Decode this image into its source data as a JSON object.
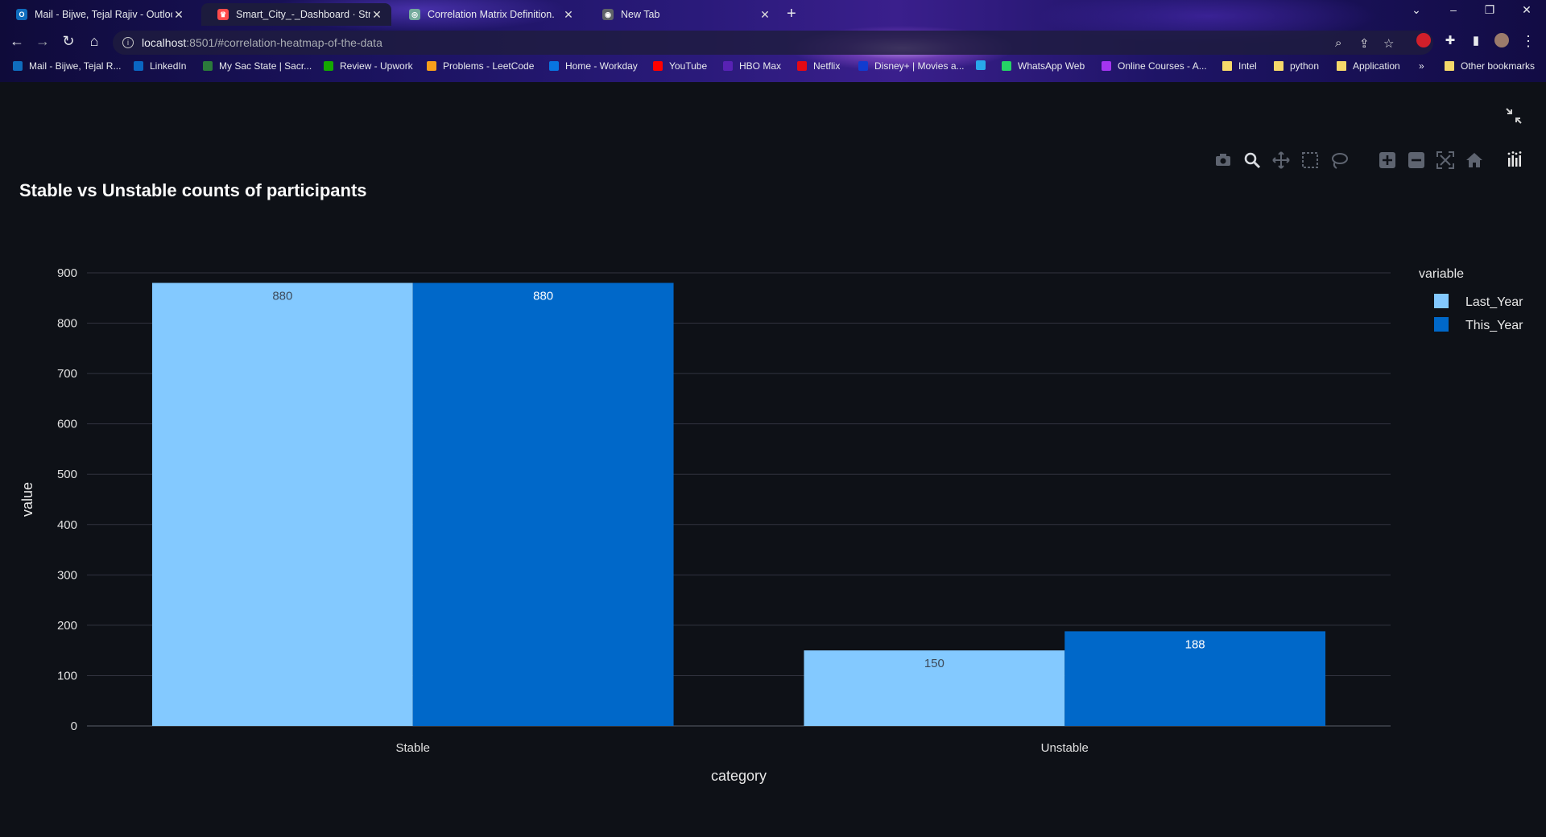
{
  "browser": {
    "tabs": [
      {
        "label": "Mail - Bijwe, Tejal Rajiv - Outlook",
        "icon": "outlook-icon",
        "color": "#0f6cbd",
        "glyph": "O",
        "active": false
      },
      {
        "label": "Smart_City_-_Dashboard · Stream",
        "icon": "streamlit-crown-icon",
        "color": "#ff4b4b",
        "glyph": "♛",
        "active": true
      },
      {
        "label": "Correlation Matrix Definition.",
        "icon": "chatgpt-icon",
        "color": "#74aa9c",
        "glyph": "◎",
        "active": false
      },
      {
        "label": "New Tab",
        "icon": "chrome-icon",
        "color": "#5f6368",
        "glyph": "◉",
        "active": false
      }
    ],
    "address": {
      "host": "localhost",
      "path": ":8501/#correlation-heatmap-of-the-data"
    },
    "bookmarks": [
      {
        "label": "Mail - Bijwe, Tejal R...",
        "icon": "outlook-icon",
        "color": "#0f6cbd"
      },
      {
        "label": "LinkedIn",
        "icon": "linkedin-icon",
        "color": "#0a66c2"
      },
      {
        "label": "My Sac State | Sacr...",
        "icon": "sac-state-icon",
        "color": "#2b7a3b"
      },
      {
        "label": "Review - Upwork",
        "icon": "upwork-icon",
        "color": "#14a800"
      },
      {
        "label": "Problems - LeetCode",
        "icon": "leetcode-icon",
        "color": "#f89f1b"
      },
      {
        "label": "Home - Workday",
        "icon": "workday-icon",
        "color": "#0875e1"
      },
      {
        "label": "YouTube",
        "icon": "youtube-icon",
        "color": "#ff0000"
      },
      {
        "label": "HBO Max",
        "icon": "hbo-max-icon",
        "color": "#5822b4"
      },
      {
        "label": "Netflix",
        "icon": "netflix-icon",
        "color": "#e50914"
      },
      {
        "label": "Disney+ | Movies a...",
        "icon": "disney-icon",
        "color": "#113ccf"
      },
      {
        "label": "",
        "icon": "onedrive-icon",
        "color": "#28a8ea"
      },
      {
        "label": "WhatsApp Web",
        "icon": "whatsapp-icon",
        "color": "#25d366"
      },
      {
        "label": "Online Courses - A...",
        "icon": "udemy-icon",
        "color": "#a435f0"
      },
      {
        "label": "Intel",
        "icon": "folder-icon",
        "color": "#f5d86a"
      },
      {
        "label": "python",
        "icon": "folder-icon",
        "color": "#f5d86a"
      },
      {
        "label": "Application",
        "icon": "folder-icon",
        "color": "#f5d86a"
      }
    ],
    "more_bookmarks": "»",
    "other_bookmarks": "Other bookmarks"
  },
  "modebar": [
    "camera-icon",
    "zoom-icon",
    "pan-icon",
    "box-select-icon",
    "lasso-select-icon",
    "zoom-in-icon",
    "zoom-out-icon",
    "autoscale-icon",
    "reset-axes-icon",
    "plotly-logo-icon"
  ],
  "chart_data": {
    "type": "bar",
    "barmode": "group",
    "title": "Stable vs Unstable counts of participants",
    "categories": [
      "Stable",
      "Unstable"
    ],
    "series": [
      {
        "name": "Last_Year",
        "values": [
          880,
          150
        ],
        "color": "#83c9ff",
        "label_color": "#3d4a5a"
      },
      {
        "name": "This_Year",
        "values": [
          880,
          188
        ],
        "color": "#0068c9",
        "label_color": "#ffffff"
      }
    ],
    "xlabel": "category",
    "ylabel": "value",
    "ylim": [
      0,
      900
    ],
    "yticks": [
      0,
      100,
      200,
      300,
      400,
      500,
      600,
      700,
      800,
      900
    ],
    "legend_title": "variable",
    "legend_position": "top-right",
    "grid": true
  }
}
